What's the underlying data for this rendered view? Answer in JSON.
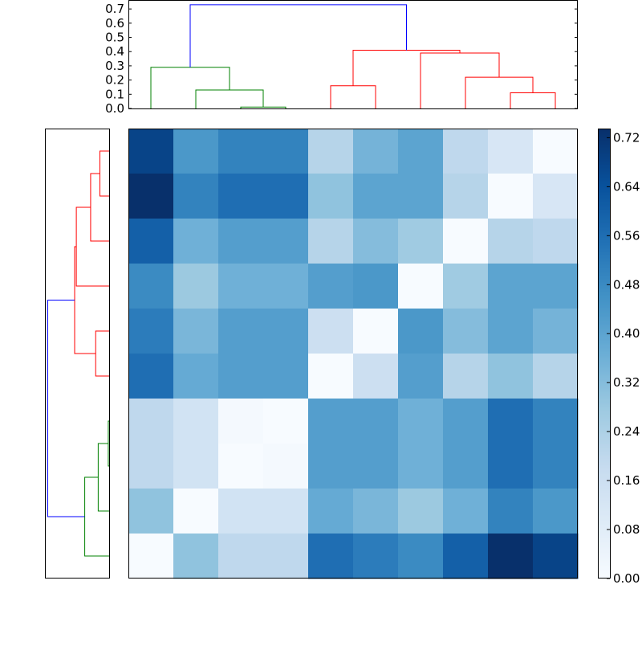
{
  "chart_data": [
    {
      "type": "dendrogram",
      "orientation": "top",
      "ylim": [
        0,
        0.763
      ],
      "yticks": [
        "0.0",
        "0.1",
        "0.2",
        "0.3",
        "0.4",
        "0.5",
        "0.6",
        "0.7"
      ],
      "leaves": 10,
      "links": [
        {
          "left": 2,
          "right": 3,
          "height": 0.01,
          "color": "#008000"
        },
        {
          "left": 1,
          "right": 2.5,
          "height": 0.13,
          "color": "#008000"
        },
        {
          "left": 0,
          "right": 1.75,
          "height": 0.29,
          "color": "#008000"
        },
        {
          "left": 4,
          "right": 5,
          "height": 0.16,
          "color": "#ff0000"
        },
        {
          "left": 8,
          "right": 9,
          "height": 0.11,
          "color": "#ff0000"
        },
        {
          "left": 7,
          "right": 8.5,
          "height": 0.22,
          "color": "#ff0000"
        },
        {
          "left": 6,
          "right": 7.75,
          "height": 0.39,
          "color": "#ff0000"
        },
        {
          "left": 4.5,
          "right": 6.875,
          "height": 0.41,
          "color": "#ff0000"
        },
        {
          "left": 0.875,
          "right": 5.6875,
          "height": 0.73,
          "color": "#0000ff"
        }
      ]
    },
    {
      "type": "dendrogram",
      "orientation": "left",
      "mirror_of_top": true,
      "xlim": [
        0,
        0.763
      ]
    },
    {
      "type": "heatmap",
      "colormap": "Blues",
      "vmin": 0,
      "vmax": 0.735,
      "values": [
        [
          0.68,
          0.44,
          0.5,
          0.5,
          0.22,
          0.35,
          0.4,
          0.2,
          0.12,
          0.0
        ],
        [
          0.74,
          0.5,
          0.56,
          0.56,
          0.3,
          0.4,
          0.4,
          0.22,
          0.0,
          0.12
        ],
        [
          0.6,
          0.36,
          0.42,
          0.42,
          0.22,
          0.32,
          0.27,
          0.0,
          0.22,
          0.2
        ],
        [
          0.48,
          0.28,
          0.36,
          0.36,
          0.42,
          0.44,
          0.0,
          0.27,
          0.4,
          0.4
        ],
        [
          0.52,
          0.34,
          0.42,
          0.42,
          0.16,
          0.0,
          0.44,
          0.32,
          0.4,
          0.35
        ],
        [
          0.56,
          0.38,
          0.42,
          0.42,
          0.0,
          0.16,
          0.42,
          0.22,
          0.3,
          0.22
        ],
        [
          0.2,
          0.14,
          0.01,
          0.0,
          0.42,
          0.42,
          0.36,
          0.42,
          0.56,
          0.5
        ],
        [
          0.2,
          0.14,
          0.0,
          0.01,
          0.42,
          0.42,
          0.36,
          0.42,
          0.56,
          0.5
        ],
        [
          0.3,
          0.0,
          0.14,
          0.14,
          0.38,
          0.34,
          0.28,
          0.36,
          0.5,
          0.44
        ],
        [
          0.0,
          0.3,
          0.2,
          0.2,
          0.56,
          0.52,
          0.48,
          0.6,
          0.74,
          0.68
        ]
      ],
      "colorbar_ticks": [
        "0.00",
        "0.08",
        "0.16",
        "0.24",
        "0.32",
        "0.40",
        "0.48",
        "0.56",
        "0.64",
        "0.72"
      ]
    }
  ]
}
